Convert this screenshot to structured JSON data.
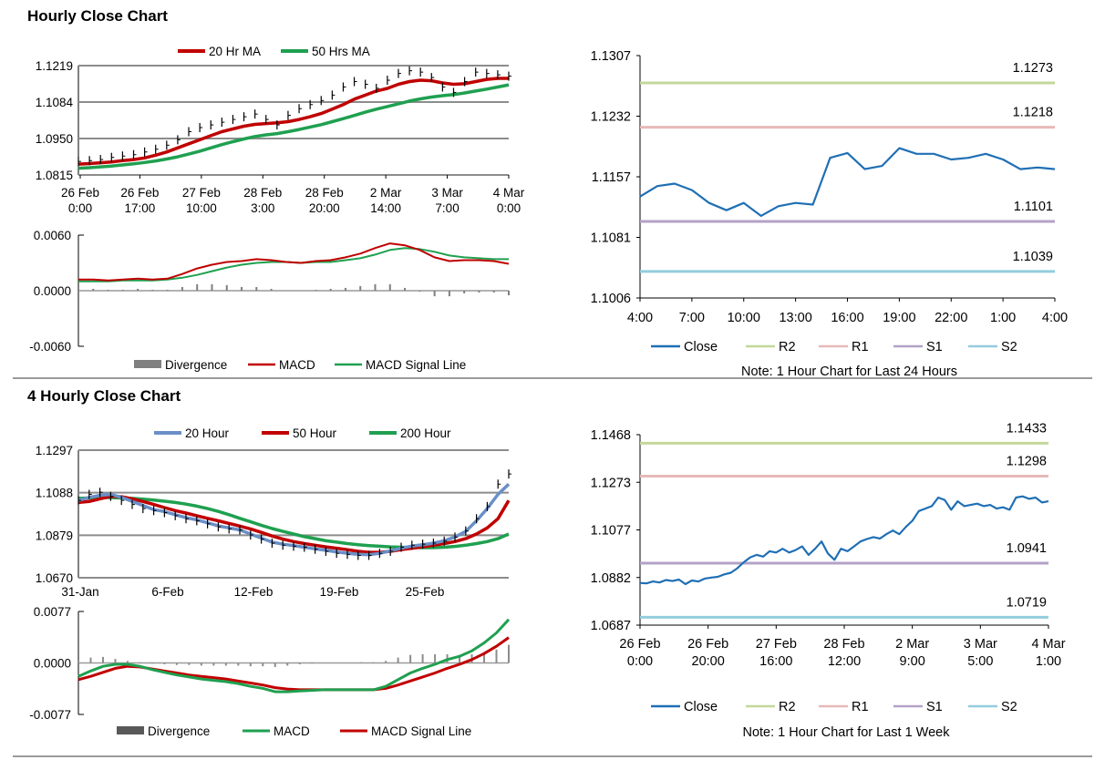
{
  "sections": {
    "hourly_title": "Hourly Close Chart",
    "four_hourly_title": "4 Hourly Close Chart"
  },
  "chart_data": [
    {
      "id": "hourly-price",
      "type": "line",
      "legend": [
        "20 Hr MA",
        "50 Hrs MA"
      ],
      "legend_colors": [
        "#c00000",
        "#1fa050"
      ],
      "ylim": [
        1.0815,
        1.1219
      ],
      "yticks": [
        "1.1219",
        "1.1084",
        "1.0950",
        "1.0815"
      ],
      "xticks": [
        [
          "26 Feb",
          "0:00"
        ],
        [
          "26 Feb",
          "17:00"
        ],
        [
          "27 Feb",
          "10:00"
        ],
        [
          "28 Feb",
          "3:00"
        ],
        [
          "28 Feb",
          "20:00"
        ],
        [
          "2 Mar",
          "14:00"
        ],
        [
          "3 Mar",
          "7:00"
        ],
        [
          "4 Mar",
          "0:00"
        ]
      ],
      "series": [
        {
          "name": "Price",
          "color": "#000000",
          "values": [
            1.0865,
            1.0868,
            1.0872,
            1.088,
            1.0885,
            1.089,
            1.09,
            1.091,
            1.0925,
            1.0945,
            1.0975,
            1.099,
            1.1,
            1.101,
            1.102,
            1.103,
            1.104,
            1.102,
            1.1,
            1.1035,
            1.106,
            1.1075,
            1.109,
            1.111,
            1.114,
            1.116,
            1.115,
            1.1135,
            1.1165,
            1.119,
            1.12,
            1.1195,
            1.1175,
            1.114,
            1.112,
            1.116,
            1.1195,
            1.119,
            1.1185,
            1.118
          ]
        },
        {
          "name": "20 Hr MA",
          "color": "#c00000",
          "values": [
            1.0855,
            1.0857,
            1.086,
            1.0863,
            1.0868,
            1.0872,
            1.0878,
            1.0888,
            1.09,
            1.0915,
            1.093,
            1.0945,
            1.096,
            1.0975,
            1.0985,
            1.0995,
            1.1002,
            1.1005,
            1.1008,
            1.1012,
            1.102,
            1.103,
            1.1042,
            1.1058,
            1.1075,
            1.1095,
            1.111,
            1.1125,
            1.1135,
            1.115,
            1.116,
            1.1165,
            1.1163,
            1.1155,
            1.115,
            1.1152,
            1.116,
            1.1168,
            1.1172,
            1.1172
          ]
        },
        {
          "name": "50 Hrs MA",
          "color": "#1fa050",
          "values": [
            1.084,
            1.0842,
            1.0845,
            1.0848,
            1.0852,
            1.0856,
            1.0861,
            1.0867,
            1.0874,
            1.0882,
            1.0892,
            1.0903,
            1.0915,
            1.0927,
            1.0938,
            1.0948,
            1.0957,
            1.0963,
            1.0968,
            1.0975,
            1.0983,
            1.0992,
            1.1001,
            1.1012,
            1.1023,
            1.1035,
            1.1047,
            1.1058,
            1.1068,
            1.1078,
            1.1088,
            1.1096,
            1.1103,
            1.1108,
            1.1112,
            1.1118,
            1.1125,
            1.1132,
            1.114,
            1.1148
          ]
        }
      ]
    },
    {
      "id": "hourly-macd",
      "type": "line",
      "legend": [
        "Divergence",
        "MACD",
        "MACD Signal Line"
      ],
      "legend_colors": [
        "#7f7f7f",
        "#c00000",
        "#1fa050"
      ],
      "ylim": [
        -0.006,
        0.006
      ],
      "yticks": [
        "0.0060",
        "0.0000",
        "-0.0060"
      ],
      "series": [
        {
          "name": "MACD",
          "color": "#c00000",
          "values": [
            0.0012,
            0.0012,
            0.0011,
            0.0012,
            0.0013,
            0.0012,
            0.0013,
            0.0018,
            0.0024,
            0.0028,
            0.0031,
            0.0032,
            0.0034,
            0.0033,
            0.0031,
            0.003,
            0.0032,
            0.0033,
            0.0036,
            0.004,
            0.0046,
            0.0051,
            0.0049,
            0.0044,
            0.0036,
            0.0032,
            0.0033,
            0.0033,
            0.0032,
            0.0029
          ]
        },
        {
          "name": "MACD Signal Line",
          "color": "#1fa050",
          "values": [
            0.001,
            0.001,
            0.001,
            0.0011,
            0.0011,
            0.0011,
            0.0012,
            0.0014,
            0.0017,
            0.0021,
            0.0025,
            0.0028,
            0.003,
            0.0031,
            0.0031,
            0.003,
            0.0031,
            0.0031,
            0.0033,
            0.0035,
            0.0039,
            0.0044,
            0.0046,
            0.0045,
            0.0042,
            0.0038,
            0.0036,
            0.0035,
            0.0034,
            0.0034
          ]
        },
        {
          "name": "Divergence",
          "color": "#7f7f7f",
          "values": [
            0.0002,
            0.0002,
            0.0001,
            0.0001,
            0.0002,
            0.0001,
            0.0001,
            0.0004,
            0.0007,
            0.0007,
            0.0006,
            0.0004,
            0.0004,
            0.0002,
            0.0,
            0.0,
            0.0001,
            0.0002,
            0.0003,
            0.0005,
            0.0007,
            0.0007,
            0.0003,
            -0.0001,
            -0.0006,
            -0.0006,
            -0.0003,
            -0.0002,
            -0.0002,
            -0.0005
          ]
        }
      ]
    },
    {
      "id": "hourly-levels",
      "type": "line",
      "ylim": [
        1.1006,
        1.1307
      ],
      "yticks": [
        "1.1307",
        "1.1232",
        "1.1157",
        "1.1081",
        "1.1006"
      ],
      "xticks": [
        "4:00",
        "7:00",
        "10:00",
        "13:00",
        "16:00",
        "19:00",
        "22:00",
        "1:00",
        "4:00"
      ],
      "x": [
        0,
        1,
        2,
        3,
        4,
        5,
        6,
        7,
        8,
        9,
        10,
        11,
        12,
        13,
        14,
        15,
        16,
        17,
        18,
        19,
        20,
        21,
        22,
        23,
        24
      ],
      "series": [
        {
          "name": "Close",
          "color": "#1f6fb4",
          "values": [
            1.1132,
            1.1145,
            1.1148,
            1.114,
            1.1124,
            1.1115,
            1.1124,
            1.1108,
            1.112,
            1.1124,
            1.1122,
            1.118,
            1.1186,
            1.1166,
            1.117,
            1.1192,
            1.1185,
            1.1185,
            1.1178,
            1.118,
            1.1185,
            1.1178,
            1.1166,
            1.1168,
            1.1166
          ]
        }
      ],
      "levels": [
        {
          "name": "R2",
          "value": 1.1273,
          "label": "1.1273",
          "color": "#c4d79b"
        },
        {
          "name": "R1",
          "value": 1.1218,
          "label": "1.1218",
          "color": "#e6b9b8"
        },
        {
          "name": "S1",
          "value": 1.1101,
          "label": "1.1101",
          "color": "#b3a2c7"
        },
        {
          "name": "S2",
          "value": 1.1039,
          "label": "1.1039",
          "color": "#93cddd"
        }
      ],
      "legend": [
        "Close",
        "R2",
        "R1",
        "S1",
        "S2"
      ],
      "note": "Note: 1 Hour Chart for Last 24 Hours"
    },
    {
      "id": "four-hourly-price",
      "type": "line",
      "legend": [
        "20 Hour",
        "50 Hour",
        "200 Hour"
      ],
      "legend_colors": [
        "#6a8fc7",
        "#c00000",
        "#1fa050"
      ],
      "ylim": [
        1.067,
        1.1297
      ],
      "yticks": [
        "1.1297",
        "1.1088",
        "1.0879",
        "1.0670"
      ],
      "xticks": [
        "31-Jan",
        "6-Feb",
        "12-Feb",
        "19-Feb",
        "25-Feb"
      ],
      "series": [
        {
          "name": "Price",
          "color": "#000000",
          "values": [
            1.105,
            1.108,
            1.109,
            1.107,
            1.105,
            1.103,
            1.101,
            1.1,
            1.099,
            1.0975,
            1.096,
            1.095,
            1.0935,
            1.092,
            1.091,
            1.0905,
            1.088,
            1.086,
            1.084,
            1.083,
            1.0825,
            1.082,
            1.081,
            1.08,
            1.079,
            1.0785,
            1.078,
            1.078,
            1.079,
            1.08,
            1.082,
            1.083,
            1.0835,
            1.084,
            1.085,
            1.087,
            1.09,
            1.096,
            1.102,
            1.113,
            1.118
          ]
        },
        {
          "name": "20 Hour",
          "color": "#6a8fc7",
          "values": [
            1.105,
            1.1065,
            1.1075,
            1.108,
            1.1065,
            1.1045,
            1.1025,
            1.1005,
            1.0995,
            1.098,
            1.0965,
            1.0955,
            1.094,
            1.0925,
            1.0915,
            1.0905,
            1.0885,
            1.0865,
            1.0845,
            1.0835,
            1.0828,
            1.082,
            1.0812,
            1.0805,
            1.0797,
            1.079,
            1.0785,
            1.0783,
            1.079,
            1.0802,
            1.0815,
            1.0826,
            1.0832,
            1.084,
            1.0852,
            1.087,
            1.0898,
            1.095,
            1.101,
            1.108,
            1.113
          ]
        },
        {
          "name": "50 Hour",
          "color": "#c00000",
          "values": [
            1.104,
            1.1045,
            1.1058,
            1.107,
            1.1068,
            1.1058,
            1.1045,
            1.103,
            1.1015,
            1.1,
            1.0988,
            1.0975,
            1.0962,
            1.095,
            1.0937,
            1.0924,
            1.091,
            1.0893,
            1.0875,
            1.086,
            1.0848,
            1.0838,
            1.083,
            1.0822,
            1.0815,
            1.0808,
            1.08,
            1.0795,
            1.0795,
            1.08,
            1.0808,
            1.0815,
            1.0822,
            1.083,
            1.0838,
            1.0848,
            1.0862,
            1.0885,
            1.0915,
            1.096,
            1.105
          ]
        },
        {
          "name": "200 Hour",
          "color": "#1fa050",
          "values": [
            1.106,
            1.1062,
            1.1064,
            1.1064,
            1.1062,
            1.106,
            1.1056,
            1.1052,
            1.1046,
            1.104,
            1.1032,
            1.1022,
            1.101,
            1.0996,
            1.098,
            1.0962,
            1.0945,
            1.0928,
            1.0912,
            1.0898,
            1.0885,
            1.0872,
            1.0862,
            1.0852,
            1.0845,
            1.0838,
            1.0832,
            1.0828,
            1.0825,
            1.0822,
            1.082,
            1.0819,
            1.0818,
            1.0818,
            1.082,
            1.0824,
            1.083,
            1.0838,
            1.0848,
            1.0862,
            1.0885
          ]
        }
      ]
    },
    {
      "id": "four-hourly-macd",
      "type": "line",
      "legend": [
        "Divergence",
        "MACD",
        "MACD Signal Line"
      ],
      "legend_colors": [
        "#595959",
        "#1fa050",
        "#c00000"
      ],
      "ylim": [
        -0.0077,
        0.0077
      ],
      "yticks": [
        "0.0077",
        "0.0000",
        "-0.0077"
      ],
      "series": [
        {
          "name": "MACD",
          "color": "#1fa050",
          "values": [
            -0.002,
            -0.0012,
            -0.0005,
            -0.0002,
            -0.0002,
            -0.0005,
            -0.001,
            -0.0014,
            -0.0018,
            -0.0021,
            -0.0024,
            -0.0026,
            -0.0028,
            -0.0031,
            -0.0035,
            -0.0038,
            -0.0043,
            -0.0043,
            -0.0042,
            -0.0041,
            -0.004,
            -0.004,
            -0.004,
            -0.004,
            -0.004,
            -0.0035,
            -0.0025,
            -0.0015,
            -0.0008,
            -0.0002,
            0.0005,
            0.001,
            0.0018,
            0.003,
            0.0045,
            0.0065
          ]
        },
        {
          "name": "MACD Signal Line",
          "color": "#c00000",
          "values": [
            -0.0025,
            -0.002,
            -0.0014,
            -0.0008,
            -0.0005,
            -0.0006,
            -0.0009,
            -0.0012,
            -0.0015,
            -0.0018,
            -0.002,
            -0.0022,
            -0.0024,
            -0.0027,
            -0.003,
            -0.0033,
            -0.0037,
            -0.0039,
            -0.004,
            -0.004,
            -0.004,
            -0.004,
            -0.004,
            -0.004,
            -0.004,
            -0.0038,
            -0.0033,
            -0.0027,
            -0.0021,
            -0.0015,
            -0.0008,
            -0.0002,
            0.0005,
            0.0014,
            0.0025,
            0.0038
          ]
        },
        {
          "name": "Divergence",
          "color": "#595959",
          "values": [
            0.0004,
            0.0008,
            0.0009,
            0.0006,
            0.0003,
            0.0001,
            -0.0001,
            -0.0002,
            -0.0003,
            -0.0003,
            -0.0004,
            -0.0004,
            -0.0004,
            -0.0004,
            -0.0005,
            -0.0005,
            -0.0006,
            -0.0004,
            -0.0002,
            -0.0001,
            0.0,
            0.0,
            0.0,
            0.0001,
            0.0001,
            0.0003,
            0.0008,
            0.0012,
            0.0013,
            0.0013,
            0.0013,
            0.0012,
            0.0013,
            0.0016,
            0.002,
            0.0027
          ]
        }
      ]
    },
    {
      "id": "four-hourly-levels",
      "type": "line",
      "ylim": [
        1.0687,
        1.1468
      ],
      "yticks": [
        "1.1468",
        "1.1273",
        "1.1077",
        "1.0882",
        "1.0687"
      ],
      "xticks": [
        [
          "26 Feb",
          "0:00"
        ],
        [
          "26 Feb",
          "20:00"
        ],
        [
          "27 Feb",
          "16:00"
        ],
        [
          "28 Feb",
          "12:00"
        ],
        [
          "2 Mar",
          "9:00"
        ],
        [
          "3 Mar",
          "5:00"
        ],
        [
          "4 Mar",
          "1:00"
        ]
      ],
      "series": [
        {
          "name": "Close",
          "color": "#1f6fb4",
          "values": [
            1.086,
            1.0858,
            1.0866,
            1.0862,
            1.0872,
            1.0868,
            1.0874,
            1.0855,
            1.087,
            1.0866,
            1.0878,
            1.0882,
            1.0885,
            1.0895,
            1.0902,
            1.092,
            1.0945,
            1.0965,
            1.0975,
            1.0968,
            1.099,
            1.0985,
            1.1,
            1.0985,
            1.0995,
            1.101,
            1.0975,
            1.1,
            1.103,
            1.098,
            1.0955,
            1.1,
            1.099,
            1.101,
            1.103,
            1.104,
            1.1048,
            1.1042,
            1.106,
            1.1075,
            1.106,
            1.109,
            1.1115,
            1.1155,
            1.1165,
            1.1175,
            1.121,
            1.12,
            1.116,
            1.1195,
            1.1175,
            1.118,
            1.1185,
            1.1175,
            1.118,
            1.1165,
            1.117,
            1.116,
            1.121,
            1.1215,
            1.1205,
            1.121,
            1.119,
            1.1195
          ]
        }
      ],
      "levels": [
        {
          "name": "R2",
          "value": 1.1433,
          "label": "1.1433",
          "color": "#c4d79b"
        },
        {
          "name": "R1",
          "value": 1.1298,
          "label": "1.1298",
          "color": "#e6b9b8"
        },
        {
          "name": "S1",
          "value": 1.0941,
          "label": "1.0941",
          "color": "#b3a2c7"
        },
        {
          "name": "S2",
          "value": 1.0719,
          "label": "1.0719",
          "color": "#93cddd"
        }
      ],
      "legend": [
        "Close",
        "R2",
        "R1",
        "S1",
        "S2"
      ],
      "note": "Note: 1 Hour Chart for Last 1 Week"
    }
  ]
}
